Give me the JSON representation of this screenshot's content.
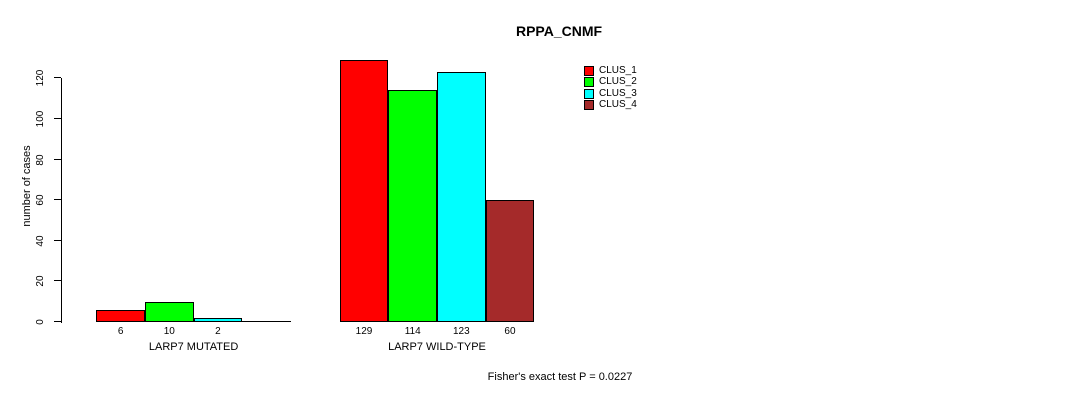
{
  "chart_data": {
    "type": "bar",
    "title": "RPPA_CNMF",
    "ylabel": "number of cases",
    "xlabel": "",
    "categories": [
      "LARP7 MUTATED",
      "LARP7 WILD-TYPE"
    ],
    "series": [
      {
        "name": "CLUS_1",
        "color": "#ff0000",
        "values": [
          6,
          129
        ]
      },
      {
        "name": "CLUS_2",
        "color": "#00ff00",
        "values": [
          10,
          114
        ]
      },
      {
        "name": "CLUS_3",
        "color": "#00ffff",
        "values": [
          2,
          123
        ]
      },
      {
        "name": "CLUS_4",
        "color": "#a52a2a",
        "values": [
          0,
          60
        ]
      }
    ],
    "y_ticks": [
      0,
      20,
      40,
      60,
      80,
      100,
      120
    ],
    "ylim": [
      0,
      130
    ],
    "show_bar_value_labels": true,
    "grid": false,
    "legend_position": "top-right",
    "annotation": "Fisher's exact test P = 0.0227"
  }
}
